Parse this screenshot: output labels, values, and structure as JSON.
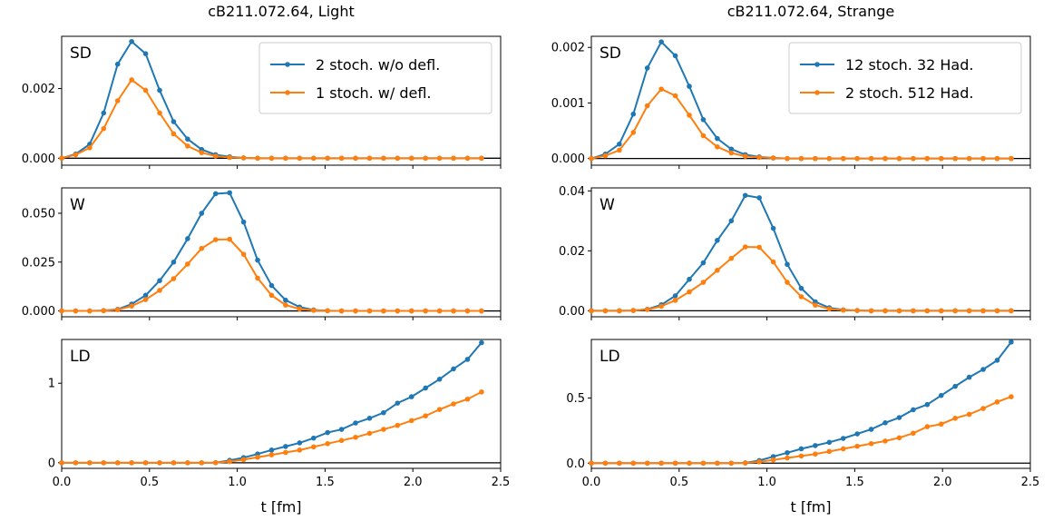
{
  "colors": {
    "series1": "#1f77b4",
    "series2": "#ff7f0e"
  },
  "chart_data": [
    {
      "type": "line",
      "title": "cB211.072.64, Light",
      "xlabel": "t [fm]",
      "xlim": [
        0.0,
        2.5
      ],
      "xticks": [
        "0.0",
        "0.5",
        "1.0",
        "1.5",
        "2.0",
        "2.5"
      ],
      "legend": {
        "placement": "top-right",
        "entries": [
          "2 stoch. w/o defl.",
          "1 stoch. w/ defl."
        ]
      },
      "x": [
        0.0,
        0.0797,
        0.1594,
        0.2391,
        0.3188,
        0.3985,
        0.4782,
        0.5579,
        0.6376,
        0.7173,
        0.797,
        0.8767,
        0.9564,
        1.0361,
        1.1158,
        1.1955,
        1.2752,
        1.3549,
        1.4346,
        1.5143,
        1.594,
        1.6737,
        1.7534,
        1.8331,
        1.9128,
        1.9925,
        2.0722,
        2.1519,
        2.2316,
        2.3113,
        2.391
      ],
      "panels": [
        {
          "label": "SD",
          "ylim": [
            -0.0002,
            0.0035
          ],
          "yticks": [
            0,
            0.002
          ],
          "ytick_labels": [
            "0.000",
            "0.002"
          ],
          "series": [
            {
              "name": "2 stoch. w/o defl.",
              "values": [
                0.0,
                0.00012,
                0.0004,
                0.0013,
                0.0027,
                0.00335,
                0.003,
                0.00195,
                0.00105,
                0.00055,
                0.00025,
                0.0001,
                4e-05,
                1e-05,
                0,
                0,
                0,
                0,
                0,
                0,
                0,
                0,
                0,
                0,
                0,
                0,
                0,
                0,
                0,
                0,
                0
              ]
            },
            {
              "name": "1 stoch. w/ defl.",
              "values": [
                0.0,
                0.0001,
                0.0003,
                0.00085,
                0.00165,
                0.00225,
                0.00195,
                0.0013,
                0.0007,
                0.00035,
                0.00016,
                6e-05,
                2e-05,
                1e-05,
                0,
                0,
                0,
                0,
                0,
                0,
                0,
                0,
                0,
                0,
                0,
                0,
                0,
                0,
                0,
                0,
                0
              ]
            }
          ]
        },
        {
          "label": "W",
          "ylim": [
            -0.003,
            0.063
          ],
          "yticks": [
            0,
            0.025,
            0.05
          ],
          "ytick_labels": [
            "0.000",
            "0.025",
            "0.050"
          ],
          "series": [
            {
              "name": "2 stoch. w/o defl.",
              "values": [
                0.0,
                0.0,
                0.0,
                0.0002,
                0.0008,
                0.0035,
                0.008,
                0.0155,
                0.025,
                0.037,
                0.05,
                0.06,
                0.0605,
                0.0455,
                0.026,
                0.013,
                0.0055,
                0.002,
                0.0005,
                0.0001,
                0,
                0,
                0,
                0,
                0,
                0,
                0,
                0,
                0,
                0,
                0
              ]
            },
            {
              "name": "1 stoch. w/ defl.",
              "values": [
                0.0,
                0.0,
                0.0,
                0.0001,
                0.0006,
                0.0025,
                0.0058,
                0.0105,
                0.0165,
                0.024,
                0.032,
                0.0365,
                0.0367,
                0.029,
                0.0168,
                0.008,
                0.003,
                0.001,
                0.0003,
                0.0001,
                0,
                0,
                0,
                0,
                0,
                0,
                0,
                0,
                0,
                0,
                0
              ]
            }
          ]
        },
        {
          "label": "LD",
          "ylim": [
            -0.07,
            1.55
          ],
          "yticks": [
            0,
            1
          ],
          "ytick_labels": [
            "0",
            "1"
          ],
          "series": [
            {
              "name": "2 stoch. w/o defl.",
              "values": [
                0.0,
                0.0,
                0.0,
                0.0,
                0.0,
                0.0,
                0.0,
                0.0,
                0.0,
                0.0,
                0.0,
                0.002,
                0.03,
                0.065,
                0.11,
                0.16,
                0.205,
                0.25,
                0.31,
                0.38,
                0.42,
                0.5,
                0.56,
                0.63,
                0.75,
                0.83,
                0.94,
                1.05,
                1.18,
                1.3,
                1.51
              ]
            },
            {
              "name": "1 stoch. w/ defl.",
              "values": [
                0.0,
                0.0,
                0.0,
                0.0,
                0.0,
                0.0,
                0.0,
                0.0,
                0.0,
                0.0,
                0.0,
                0.001,
                0.015,
                0.04,
                0.07,
                0.1,
                0.13,
                0.16,
                0.2,
                0.24,
                0.28,
                0.32,
                0.37,
                0.42,
                0.47,
                0.53,
                0.59,
                0.67,
                0.74,
                0.8,
                0.89
              ]
            }
          ]
        }
      ]
    },
    {
      "type": "line",
      "title": "cB211.072.64, Strange",
      "xlabel": "t [fm]",
      "xlim": [
        0.0,
        2.5
      ],
      "xticks": [
        "0.0",
        "0.5",
        "1.0",
        "1.5",
        "2.0",
        "2.5"
      ],
      "legend": {
        "placement": "top-right",
        "entries": [
          "12 stoch. 32 Had.",
          "2 stoch. 512 Had."
        ]
      },
      "x": [
        0.0,
        0.0797,
        0.1594,
        0.2391,
        0.3188,
        0.3985,
        0.4782,
        0.5579,
        0.6376,
        0.7173,
        0.797,
        0.8767,
        0.9564,
        1.0361,
        1.1158,
        1.1955,
        1.2752,
        1.3549,
        1.4346,
        1.5143,
        1.594,
        1.6737,
        1.7534,
        1.8331,
        1.9128,
        1.9925,
        2.0722,
        2.1519,
        2.2316,
        2.3113,
        2.391
      ],
      "panels": [
        {
          "label": "SD",
          "ylim": [
            -0.00012,
            0.0022
          ],
          "yticks": [
            0,
            0.001,
            0.002
          ],
          "ytick_labels": [
            "0.000",
            "0.001",
            "0.002"
          ],
          "series": [
            {
              "name": "12 stoch. 32 Had.",
              "values": [
                0.0,
                8e-05,
                0.00026,
                0.0008,
                0.00163,
                0.0021,
                0.00185,
                0.0013,
                0.0007,
                0.00036,
                0.00017,
                7e-05,
                3e-05,
                1e-05,
                0,
                0,
                0,
                0,
                0,
                0,
                0,
                0,
                0,
                0,
                0,
                0,
                0,
                0,
                0,
                0,
                0
              ]
            },
            {
              "name": "2 stoch. 512 Had.",
              "values": [
                0.0,
                5e-05,
                0.00015,
                0.00047,
                0.00095,
                0.00125,
                0.00113,
                0.00078,
                0.00041,
                0.00021,
                0.0001,
                4e-05,
                2e-05,
                1e-05,
                0,
                0,
                0,
                0,
                0,
                0,
                0,
                0,
                0,
                0,
                0,
                0,
                0,
                0,
                0,
                0,
                0
              ]
            }
          ]
        },
        {
          "label": "W",
          "ylim": [
            -0.002,
            0.041
          ],
          "yticks": [
            0,
            0.02,
            0.04
          ],
          "ytick_labels": [
            "0.00",
            "0.02",
            "0.04"
          ],
          "series": [
            {
              "name": "12 stoch. 32 Had.",
              "values": [
                0.0,
                0.0,
                0.0,
                0.0001,
                0.0005,
                0.002,
                0.005,
                0.0105,
                0.016,
                0.0235,
                0.03,
                0.0385,
                0.0377,
                0.0275,
                0.0155,
                0.0075,
                0.003,
                0.001,
                0.0003,
                0.0001,
                0,
                0,
                0,
                0,
                0,
                0,
                0,
                0,
                0,
                0,
                0
              ]
            },
            {
              "name": "2 stoch. 512 Had.",
              "values": [
                0.0,
                0.0,
                0.0,
                0.0001,
                0.0004,
                0.0015,
                0.0035,
                0.0063,
                0.0095,
                0.0135,
                0.0175,
                0.0213,
                0.0212,
                0.0163,
                0.0095,
                0.0047,
                0.0019,
                0.0006,
                0.0002,
                0.0001,
                0,
                0,
                0,
                0,
                0,
                0,
                0,
                0,
                0,
                0,
                0
              ]
            }
          ]
        },
        {
          "label": "LD",
          "ylim": [
            -0.04,
            0.95
          ],
          "yticks": [
            0,
            0.5
          ],
          "ytick_labels": [
            "0.0",
            "0.5"
          ],
          "series": [
            {
              "name": "12 stoch. 32 Had.",
              "values": [
                0.0,
                0.0,
                0.0,
                0.0,
                0.0,
                0.0,
                0.0,
                0.0,
                0.0,
                0.0,
                0.0,
                0.002,
                0.02,
                0.05,
                0.08,
                0.11,
                0.135,
                0.16,
                0.19,
                0.225,
                0.26,
                0.31,
                0.35,
                0.41,
                0.45,
                0.52,
                0.59,
                0.66,
                0.72,
                0.79,
                0.93
              ]
            },
            {
              "name": "2 stoch. 512 Had.",
              "values": [
                0.0,
                0.0,
                0.0,
                0.0,
                0.0,
                0.0,
                0.0,
                0.0,
                0.0,
                0.0,
                0.0,
                0.001,
                0.01,
                0.025,
                0.04,
                0.055,
                0.07,
                0.09,
                0.11,
                0.13,
                0.15,
                0.17,
                0.195,
                0.23,
                0.28,
                0.3,
                0.345,
                0.375,
                0.42,
                0.47,
                0.51
              ]
            }
          ]
        }
      ]
    }
  ]
}
